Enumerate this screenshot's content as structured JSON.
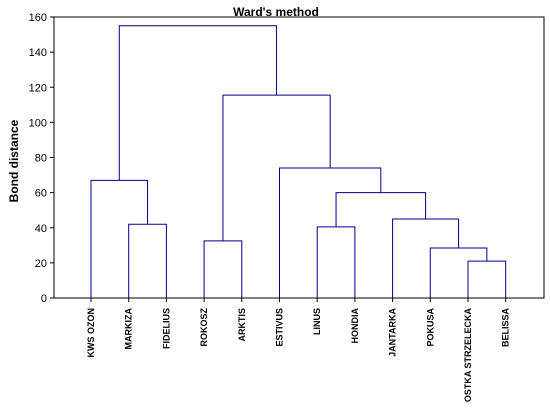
{
  "chart_data": {
    "type": "dendrogram",
    "title": "Ward's method",
    "xlabel": "",
    "ylabel": "Bond distance",
    "ylim": [
      0,
      160
    ],
    "yticks": [
      0,
      20,
      40,
      60,
      80,
      100,
      120,
      140,
      160
    ],
    "grid": false,
    "line_color": "#00008b",
    "leaves": [
      "KWS OZON",
      "MARKIZA",
      "FIDELIUS",
      "ROKOSZ",
      "ARKTIS",
      "ESTIVUS",
      "LINUS",
      "HONDIA",
      "JANTARKA",
      "POKUSA",
      "OSTKA STRZELECKA",
      "BELISSA"
    ],
    "merges": [
      {
        "left": "L1",
        "right": "L2",
        "height": 42
      },
      {
        "left": "L0",
        "right": "M0",
        "height": 67
      },
      {
        "left": "L3",
        "right": "L4",
        "height": 32.5
      },
      {
        "left": "L6",
        "right": "L7",
        "height": 40.5
      },
      {
        "left": "L10",
        "right": "L11",
        "height": 21
      },
      {
        "left": "L9",
        "right": "M4",
        "height": 28.5
      },
      {
        "left": "L8",
        "right": "M5",
        "height": 45
      },
      {
        "left": "M3",
        "right": "M6",
        "height": 60
      },
      {
        "left": "L5",
        "right": "M7",
        "height": 74
      },
      {
        "left": "M2",
        "right": "M8",
        "height": 115.5
      },
      {
        "left": "M1",
        "right": "M9",
        "height": 155
      }
    ]
  }
}
